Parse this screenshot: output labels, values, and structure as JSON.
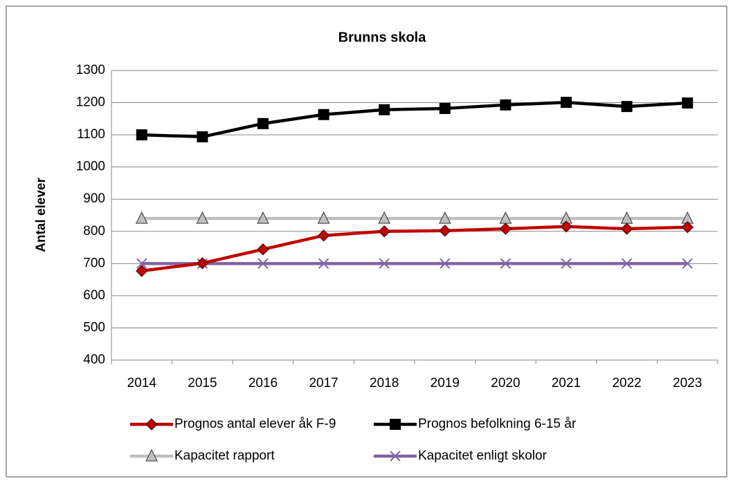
{
  "chart_data": {
    "type": "line",
    "title": "Brunns skola",
    "y_label": "Antal elever",
    "categories": [
      "2014",
      "2015",
      "2016",
      "2017",
      "2018",
      "2019",
      "2020",
      "2021",
      "2022",
      "2023"
    ],
    "series": [
      {
        "name": "Prognos antal elever åk F-9",
        "color": "#c00000",
        "marker": "diamond",
        "values": [
          677,
          701,
          744,
          787,
          800,
          802,
          808,
          815,
          808,
          813
        ]
      },
      {
        "name": "Prognos befolkning 6-15 år",
        "color": "#000000",
        "marker": "square",
        "values": [
          1100,
          1094,
          1135,
          1163,
          1178,
          1182,
          1193,
          1201,
          1188,
          1199
        ]
      },
      {
        "name": "Kapacitet rapport",
        "color": "#bfbfbf",
        "marker": "triangle",
        "values": [
          840,
          840,
          840,
          840,
          840,
          840,
          840,
          840,
          840,
          840
        ]
      },
      {
        "name": "Kapacitet enligt skolor",
        "color": "#8064a2",
        "marker": "x",
        "values": [
          700,
          700,
          700,
          700,
          700,
          700,
          700,
          700,
          700,
          700
        ]
      }
    ],
    "ylim": [
      400,
      1300
    ],
    "yticks": [
      400,
      500,
      600,
      700,
      800,
      900,
      1000,
      1100,
      1200,
      1300
    ],
    "grid": true,
    "legend": "bottom"
  }
}
